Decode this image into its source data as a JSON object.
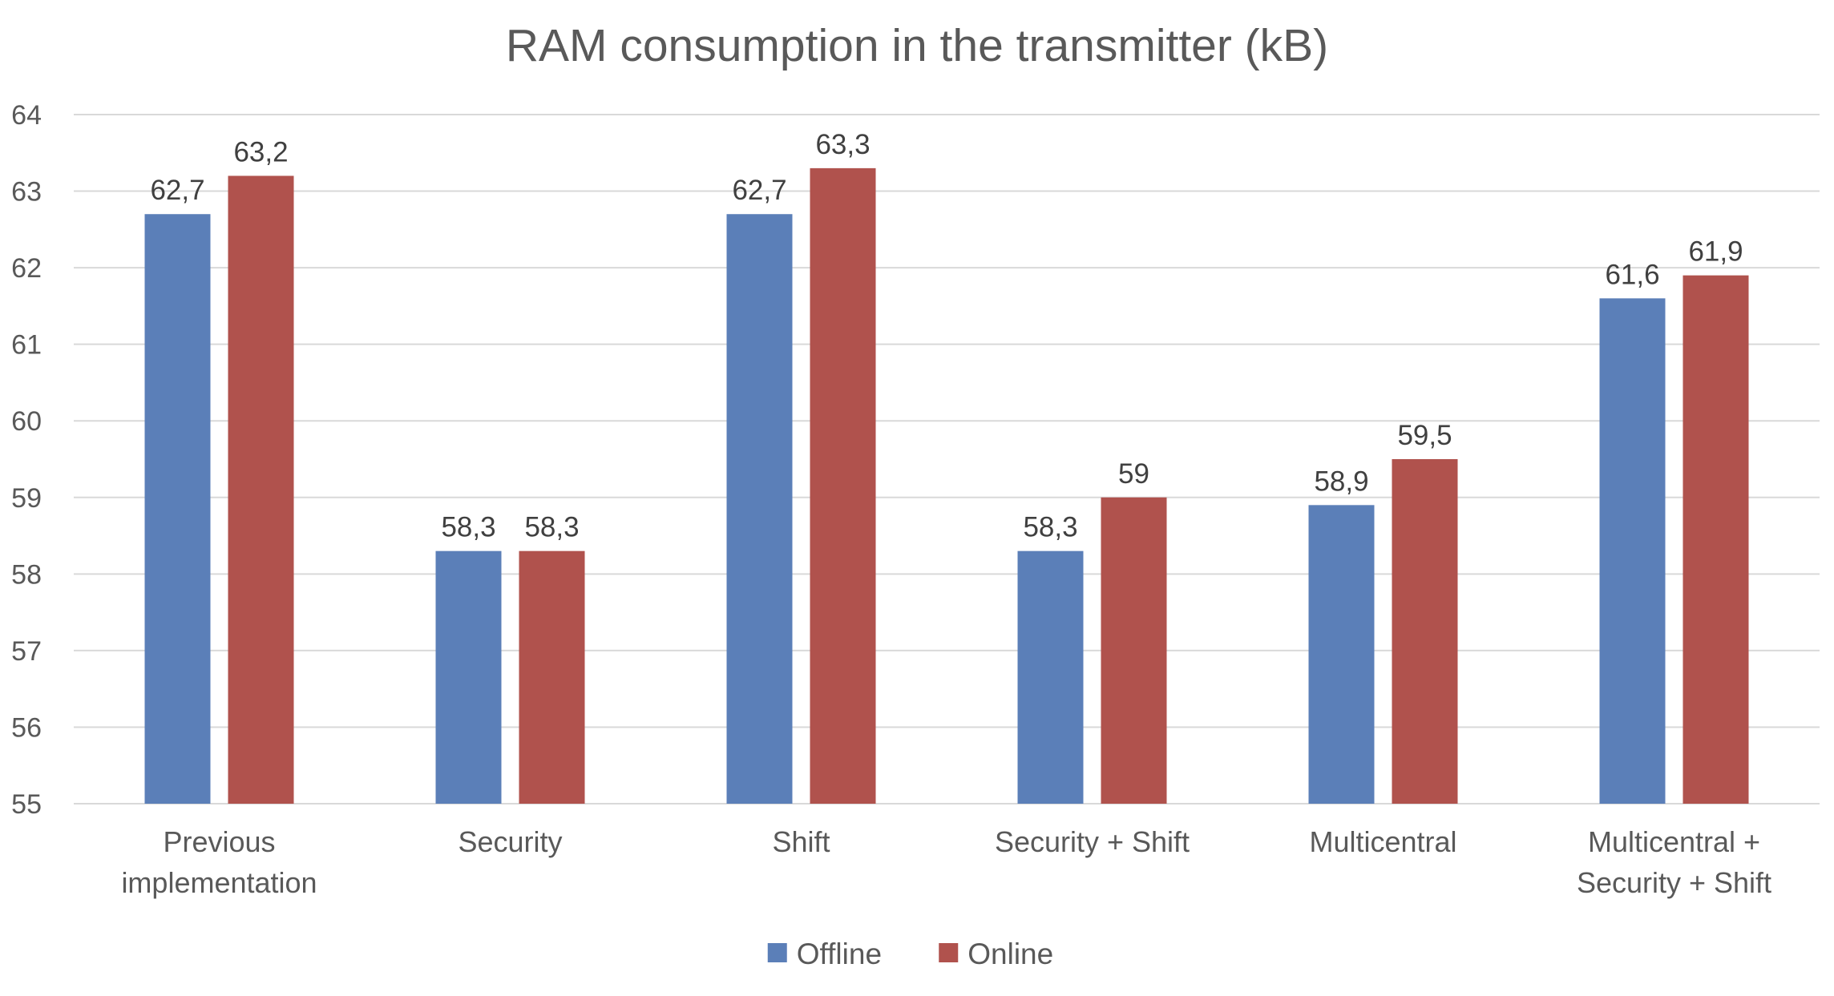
{
  "chart_data": {
    "type": "bar",
    "title": "RAM consumption in the transmitter (kB)",
    "xlabel": "",
    "ylabel": "",
    "ylim": [
      55,
      64
    ],
    "yticks": [
      "55",
      "56",
      "57",
      "58",
      "59",
      "60",
      "61",
      "62",
      "63",
      "64"
    ],
    "grid": true,
    "legend_position": "bottom",
    "categories": [
      [
        "Previous",
        "implementation"
      ],
      [
        "Security"
      ],
      [
        "Shift"
      ],
      [
        "Security + Shift"
      ],
      [
        "Multicentral"
      ],
      [
        "Multicentral +",
        "Security + Shift"
      ]
    ],
    "series": [
      {
        "name": "Offline",
        "color": "#5b7fb8",
        "values": [
          62.7,
          58.3,
          62.7,
          58.3,
          58.9,
          61.6
        ],
        "labels": [
          "62,7",
          "58,3",
          "62,7",
          "58,3",
          "58,9",
          "61,6"
        ]
      },
      {
        "name": "Online",
        "color": "#b0524d",
        "values": [
          63.2,
          58.3,
          63.3,
          59.0,
          59.5,
          61.9
        ],
        "labels": [
          "63,2",
          "58,3",
          "63,3",
          "59",
          "59,5",
          "61,9"
        ]
      }
    ]
  }
}
